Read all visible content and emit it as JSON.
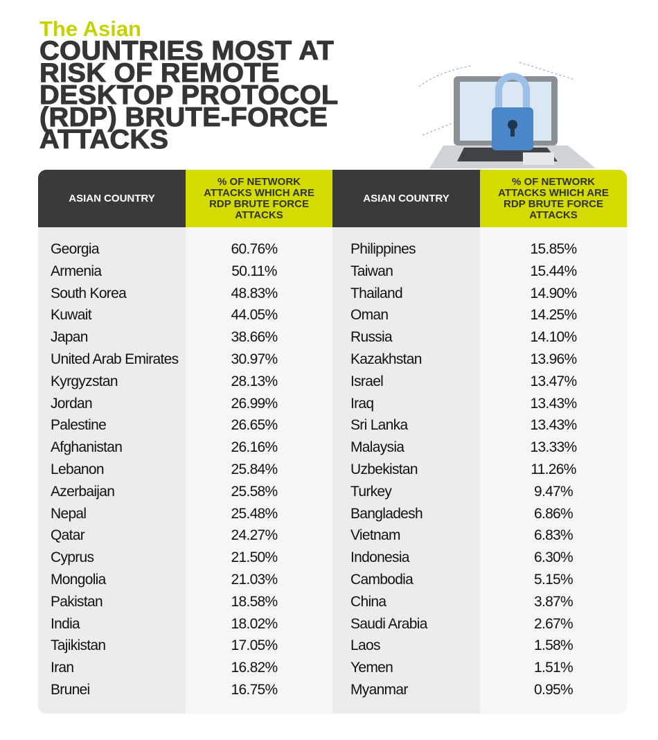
{
  "header": {
    "kicker": "The Asian",
    "title_lines": [
      "COUNTRIES MOST AT",
      "RISK OF REMOTE",
      "DESKTOP PROTOCOL",
      "(RDP) BRUTE-FORCE",
      "ATTACKS"
    ]
  },
  "tables": [
    {
      "columns": [
        "ASIAN COUNTRY",
        "% OF NETWORK ATTACKS WHICH ARE RDP BRUTE FORCE ATTACKS"
      ],
      "rows": [
        [
          "Georgia",
          "60.76%"
        ],
        [
          "Armenia",
          "50.11%"
        ],
        [
          "South Korea",
          "48.83%"
        ],
        [
          "Kuwait",
          "44.05%"
        ],
        [
          "Japan",
          "38.66%"
        ],
        [
          "United Arab Emirates",
          "30.97%"
        ],
        [
          "Kyrgyzstan",
          "28.13%"
        ],
        [
          "Jordan",
          "26.99%"
        ],
        [
          "Palestine",
          "26.65%"
        ],
        [
          "Afghanistan",
          "26.16%"
        ],
        [
          "Lebanon",
          "25.84%"
        ],
        [
          "Azerbaijan",
          "25.58%"
        ],
        [
          "Nepal",
          "25.48%"
        ],
        [
          "Qatar",
          "24.27%"
        ],
        [
          "Cyprus",
          "21.50%"
        ],
        [
          "Mongolia",
          "21.03%"
        ],
        [
          "Pakistan",
          "18.58%"
        ],
        [
          "India",
          "18.02%"
        ],
        [
          "Tajikistan",
          "17.05%"
        ],
        [
          "Iran",
          "16.82%"
        ],
        [
          "Brunei",
          "16.75%"
        ]
      ]
    },
    {
      "columns": [
        "ASIAN COUNTRY",
        "% OF NETWORK ATTACKS WHICH ARE RDP BRUTE FORCE ATTACKS"
      ],
      "rows": [
        [
          "Philippines",
          "15.85%"
        ],
        [
          "Taiwan",
          "15.44%"
        ],
        [
          "Thailand",
          "14.90%"
        ],
        [
          "Oman",
          "14.25%"
        ],
        [
          "Russia",
          "14.10%"
        ],
        [
          "Kazakhstan",
          "13.96%"
        ],
        [
          "Israel",
          "13.47%"
        ],
        [
          "Iraq",
          "13.43%"
        ],
        [
          "Sri Lanka",
          "13.43%"
        ],
        [
          "Malaysia",
          "13.33%"
        ],
        [
          "Uzbekistan",
          "11.26%"
        ],
        [
          "Turkey",
          "9.47%"
        ],
        [
          "Bangladesh",
          "6.86%"
        ],
        [
          "Vietnam",
          "6.83%"
        ],
        [
          "Indonesia",
          "6.30%"
        ],
        [
          "Cambodia",
          "5.15%"
        ],
        [
          "China",
          "3.87%"
        ],
        [
          "Saudi Arabia",
          "2.67%"
        ],
        [
          "Laos",
          "1.58%"
        ],
        [
          "Yemen",
          "1.51%"
        ],
        [
          "Myanmar",
          "0.95%"
        ]
      ]
    }
  ]
}
